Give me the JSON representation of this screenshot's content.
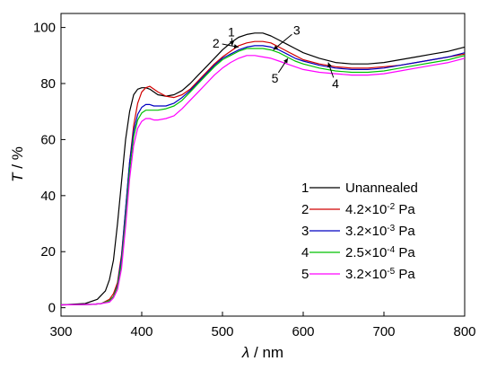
{
  "chart_data": {
    "type": "line",
    "xlabel": {
      "symbol": "λ",
      "unit": " / nm"
    },
    "ylabel": {
      "symbol": "T",
      "unit": " / %"
    },
    "xlim": [
      300,
      800
    ],
    "ylim": [
      -3,
      105
    ],
    "xticks": [
      300,
      400,
      500,
      600,
      700,
      800
    ],
    "yticks": [
      0,
      20,
      40,
      60,
      80,
      100
    ],
    "grid": false,
    "legend_position": "lower-right",
    "series": [
      {
        "id": "1",
        "name": "Unannealed",
        "color": "#000000",
        "x": [
          300,
          330,
          345,
          355,
          360,
          365,
          370,
          375,
          380,
          385,
          390,
          395,
          400,
          405,
          410,
          415,
          420,
          430,
          440,
          450,
          460,
          470,
          480,
          490,
          500,
          510,
          520,
          530,
          540,
          550,
          560,
          570,
          580,
          590,
          600,
          620,
          640,
          660,
          680,
          700,
          720,
          740,
          760,
          780,
          800
        ],
        "y": [
          1,
          1.5,
          3,
          6,
          10,
          17,
          30,
          45,
          60,
          70,
          76,
          78,
          78.5,
          78.5,
          78,
          77,
          76,
          75.5,
          76,
          77.5,
          80,
          83,
          86,
          89,
          92,
          94.5,
          96.5,
          97.5,
          98,
          98,
          97,
          95.5,
          94,
          92.5,
          91,
          89,
          87.5,
          87,
          87,
          87.5,
          88.5,
          89.5,
          90.5,
          91.5,
          93
        ]
      },
      {
        "id": "2",
        "name": "4.2×10⁻² Pa",
        "color": "#d00000",
        "x": [
          300,
          340,
          350,
          360,
          365,
          370,
          375,
          380,
          385,
          390,
          395,
          400,
          405,
          410,
          415,
          420,
          430,
          440,
          450,
          460,
          470,
          480,
          490,
          500,
          510,
          520,
          530,
          540,
          550,
          560,
          570,
          580,
          590,
          600,
          620,
          640,
          660,
          680,
          700,
          720,
          740,
          760,
          780,
          800
        ],
        "y": [
          1,
          1.2,
          1.5,
          3,
          5,
          9,
          19,
          35,
          52,
          65,
          73,
          77,
          78.5,
          79,
          78,
          77,
          75.5,
          75,
          76,
          78,
          81,
          84,
          87,
          89.5,
          91.5,
          93.5,
          94.5,
          95,
          95,
          94.5,
          93,
          91.5,
          90,
          88.5,
          87,
          86,
          85.5,
          85.5,
          86,
          86.5,
          87.5,
          88.5,
          89.5,
          90.5
        ]
      },
      {
        "id": "3",
        "name": "3.2×10⁻³ Pa",
        "color": "#0000c0",
        "x": [
          300,
          340,
          350,
          360,
          365,
          370,
          375,
          380,
          385,
          390,
          395,
          400,
          405,
          410,
          415,
          420,
          430,
          440,
          450,
          460,
          470,
          480,
          490,
          500,
          510,
          520,
          530,
          540,
          550,
          560,
          570,
          580,
          590,
          600,
          620,
          640,
          660,
          680,
          700,
          720,
          740,
          760,
          780,
          800
        ],
        "y": [
          1,
          1.2,
          1.5,
          2.5,
          4,
          8,
          18,
          35,
          52,
          63,
          69,
          71.5,
          72.5,
          72.5,
          72,
          72,
          72,
          73,
          75,
          77.5,
          80.5,
          83.5,
          86.5,
          89,
          90.5,
          92,
          93,
          93.5,
          93.5,
          93,
          92,
          90.5,
          89,
          88,
          86.5,
          85.5,
          85,
          85,
          85.5,
          86.5,
          87.5,
          88.5,
          89.5,
          91
        ]
      },
      {
        "id": "4",
        "name": "2.5×10⁻⁴ Pa",
        "color": "#00c000",
        "x": [
          300,
          340,
          350,
          360,
          365,
          370,
          375,
          380,
          385,
          390,
          395,
          400,
          405,
          410,
          415,
          420,
          430,
          440,
          450,
          460,
          470,
          480,
          490,
          500,
          510,
          520,
          530,
          540,
          550,
          560,
          570,
          580,
          590,
          600,
          620,
          640,
          660,
          680,
          700,
          720,
          740,
          760,
          780,
          800
        ],
        "y": [
          1,
          1.2,
          1.5,
          2.5,
          4,
          7.5,
          16,
          32,
          49,
          61,
          67,
          69.5,
          70.5,
          70.5,
          70.5,
          70.5,
          71,
          72,
          74,
          77,
          80,
          83,
          86,
          88.5,
          90,
          91.5,
          92.5,
          92.5,
          92.5,
          92,
          91,
          89.5,
          88,
          87,
          85.5,
          84.5,
          84,
          84,
          84.5,
          85.5,
          86.5,
          87.5,
          88.5,
          90
        ]
      },
      {
        "id": "5",
        "name": "3.2×10⁻⁵ Pa",
        "color": "#ff00ff",
        "x": [
          300,
          340,
          350,
          360,
          365,
          370,
          375,
          380,
          385,
          390,
          395,
          400,
          405,
          410,
          415,
          420,
          430,
          440,
          450,
          460,
          470,
          480,
          490,
          500,
          510,
          520,
          530,
          540,
          550,
          560,
          570,
          580,
          590,
          600,
          620,
          640,
          660,
          680,
          700,
          720,
          740,
          760,
          780,
          800
        ],
        "y": [
          1,
          1.2,
          1.5,
          2,
          3.5,
          6.5,
          14,
          29,
          46,
          58,
          64,
          66.5,
          67.5,
          67.5,
          67,
          67,
          67.5,
          68.5,
          71,
          74,
          77,
          80,
          83,
          85.5,
          87.5,
          89,
          90,
          90,
          89.5,
          89,
          88,
          87,
          86,
          85,
          84,
          83.5,
          83,
          83,
          83.5,
          84.5,
          85.5,
          86.5,
          87.5,
          89
        ]
      }
    ],
    "annotations": [
      {
        "label": "1",
        "arrow_to": [
          512,
          93.5
        ],
        "text_at": [
          511,
          98.5
        ]
      },
      {
        "label": "2",
        "arrow_to": [
          520,
          93
        ],
        "text_at": [
          492,
          94.5
        ]
      },
      {
        "label": "3",
        "arrow_to": [
          563,
          92
        ],
        "text_at": [
          592,
          99
        ]
      },
      {
        "label": "4",
        "arrow_to": [
          631,
          87.5
        ],
        "text_at": [
          640,
          80
        ]
      },
      {
        "label": "5",
        "arrow_to": [
          581,
          89
        ],
        "text_at": [
          565,
          82
        ]
      }
    ]
  }
}
